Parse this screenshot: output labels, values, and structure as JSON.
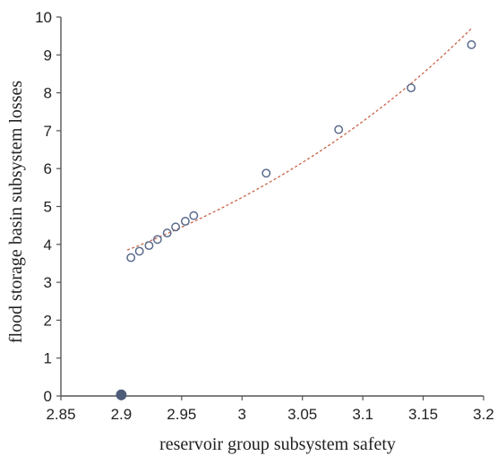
{
  "chart_data": {
    "type": "scatter",
    "title": "",
    "xlabel": "reservoir group subsystem safety",
    "ylabel": "flood storage basin subsystem losses",
    "xlim": [
      2.85,
      3.2
    ],
    "ylim": [
      0,
      10
    ],
    "x_ticks": [
      2.85,
      2.9,
      2.95,
      3.0,
      3.05,
      3.1,
      3.15,
      3.2
    ],
    "x_tick_labels": [
      "2.85",
      "2.9",
      "2.95",
      "3",
      "3.05",
      "3.1",
      "3.15",
      "3.2"
    ],
    "y_ticks": [
      0,
      1,
      2,
      3,
      4,
      5,
      6,
      7,
      8,
      9,
      10
    ],
    "y_tick_labels": [
      "0",
      "1",
      "2",
      "3",
      "4",
      "5",
      "6",
      "7",
      "8",
      "9",
      "10"
    ],
    "grid": false,
    "legend": "none",
    "series": [
      {
        "marker": "open-circle",
        "color": "#5a6b8c",
        "points": [
          {
            "x": 2.908,
            "y": 3.65
          },
          {
            "x": 2.915,
            "y": 3.82
          },
          {
            "x": 2.923,
            "y": 3.97
          },
          {
            "x": 2.93,
            "y": 4.13
          },
          {
            "x": 2.938,
            "y": 4.3
          },
          {
            "x": 2.945,
            "y": 4.46
          },
          {
            "x": 2.953,
            "y": 4.61
          },
          {
            "x": 2.96,
            "y": 4.76
          },
          {
            "x": 3.02,
            "y": 5.88
          },
          {
            "x": 3.08,
            "y": 7.03
          },
          {
            "x": 3.14,
            "y": 8.13
          },
          {
            "x": 3.19,
            "y": 9.27
          }
        ]
      },
      {
        "marker": "filled-circle",
        "color": "#4e5c78",
        "points": [
          {
            "x": 2.9,
            "y": 0.03
          }
        ]
      }
    ],
    "trendline": {
      "style": "dashed",
      "color": "#c8644a",
      "x_range": [
        2.905,
        3.19
      ],
      "y_at_start": 3.85,
      "y_at_end": 9.7
    }
  }
}
